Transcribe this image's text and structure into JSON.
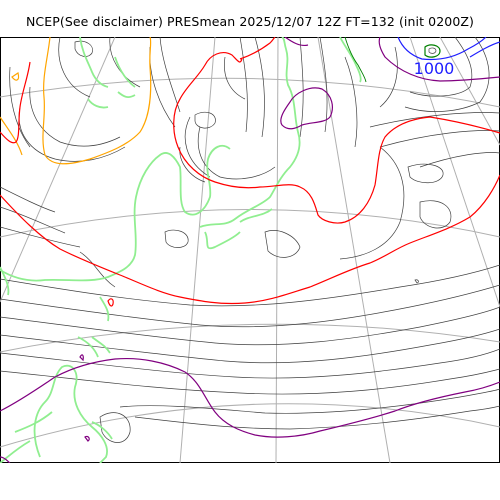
{
  "title": "NCEP(See disclaimer) PRESmean 2025/12/07 12Z FT=132 (init 0200Z)",
  "contour_label": "1000",
  "colors": {
    "background": "#ffffff",
    "isobar": "#404040",
    "isobar_1000": "#1f1fff",
    "isobar_1012": "#800080",
    "isobar_1020": "#ff0000",
    "isobar_1028": "#ffa500",
    "isobar_green": "#90ee90",
    "graticule": "#b0b0b0"
  }
}
